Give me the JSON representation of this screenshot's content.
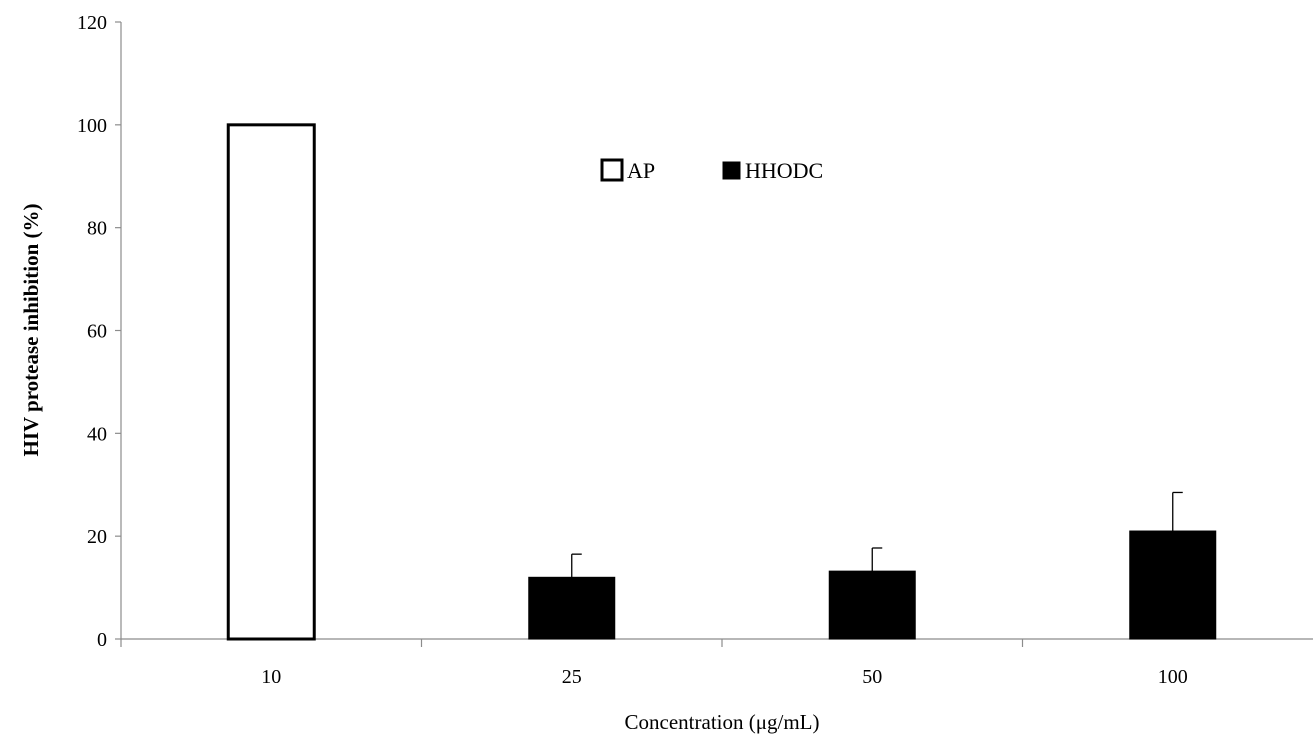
{
  "chart_data": {
    "type": "bar",
    "categories": [
      "10",
      "25",
      "50",
      "100"
    ],
    "xlabel": "Concentration (μg/mL)",
    "ylabel": "HIV protease inhibition (%)",
    "ylim": [
      0,
      120
    ],
    "yticks": [
      0,
      20,
      40,
      60,
      80,
      100,
      120
    ],
    "grid": false,
    "legend_position": "top-center",
    "series": [
      {
        "name": "AP",
        "fill": "#ffffff",
        "stroke": "#000000",
        "values": [
          100,
          null,
          null,
          null
        ],
        "errors": [
          null,
          null,
          null,
          null
        ]
      },
      {
        "name": "HHODC",
        "fill": "#000000",
        "stroke": "#000000",
        "values": [
          null,
          12,
          13.2,
          21
        ],
        "errors": [
          null,
          4.5,
          4.5,
          7.5
        ]
      }
    ]
  }
}
